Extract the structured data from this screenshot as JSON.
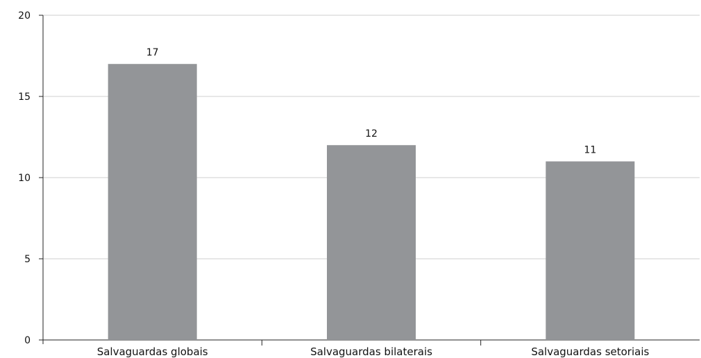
{
  "chart_data": {
    "type": "bar",
    "categories": [
      "Salvaguardas globais",
      "Salvaguardas bilaterais",
      "Salvaguardas setoriais"
    ],
    "values": [
      17,
      12,
      11
    ],
    "ylim": [
      0,
      20
    ],
    "yticks": [
      0,
      5,
      10,
      15,
      20
    ],
    "grid": true,
    "bar_color": "#939598",
    "data_labels": true
  }
}
